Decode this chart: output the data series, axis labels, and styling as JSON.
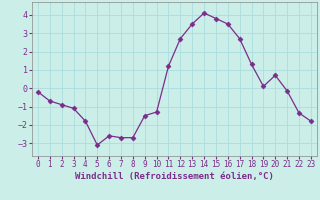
{
  "x": [
    0,
    1,
    2,
    3,
    4,
    5,
    6,
    7,
    8,
    9,
    10,
    11,
    12,
    13,
    14,
    15,
    16,
    17,
    18,
    19,
    20,
    21,
    22,
    23
  ],
  "y": [
    -0.2,
    -0.7,
    -0.9,
    -1.1,
    -1.8,
    -3.1,
    -2.6,
    -2.7,
    -2.7,
    -1.5,
    -1.3,
    1.2,
    2.7,
    3.5,
    4.1,
    3.8,
    3.5,
    2.7,
    1.3,
    0.1,
    0.7,
    -0.15,
    -1.35,
    -1.8
  ],
  "line_color": "#7b2d8b",
  "marker": "D",
  "marker_size": 2.5,
  "bg_color": "#cceee8",
  "grid_color": "#aadddd",
  "xlabel": "Windchill (Refroidissement éolien,°C)",
  "xlim": [
    -0.5,
    23.5
  ],
  "ylim": [
    -3.7,
    4.7
  ],
  "yticks": [
    -3,
    -2,
    -1,
    0,
    1,
    2,
    3,
    4
  ],
  "xticks": [
    0,
    1,
    2,
    3,
    4,
    5,
    6,
    7,
    8,
    9,
    10,
    11,
    12,
    13,
    14,
    15,
    16,
    17,
    18,
    19,
    20,
    21,
    22,
    23
  ],
  "tick_color": "#7b2d8b",
  "xlabel_fontsize": 6.5,
  "tick_fontsize": 5.5
}
